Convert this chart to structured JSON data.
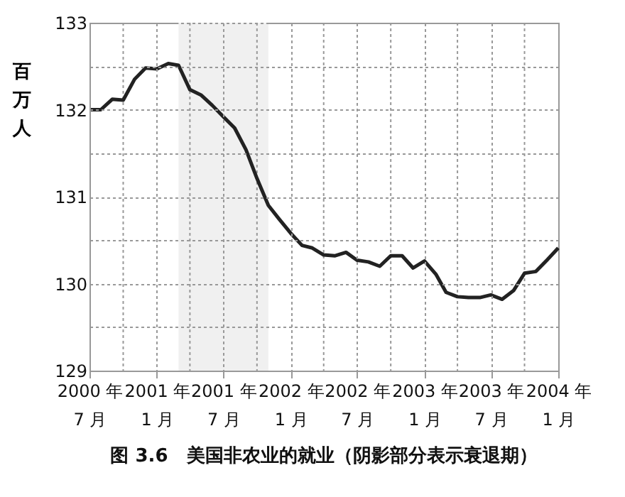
{
  "chart_data": {
    "type": "line",
    "title": "图 3.6　美国非农业的就业（阴影部分表示衰退期）",
    "ylabel": "百万人",
    "x": [
      "2000-07",
      "2000-08",
      "2000-09",
      "2000-10",
      "2000-11",
      "2000-12",
      "2001-01",
      "2001-02",
      "2001-03",
      "2001-04",
      "2001-05",
      "2001-06",
      "2001-07",
      "2001-08",
      "2001-09",
      "2001-10",
      "2001-11",
      "2001-12",
      "2002-01",
      "2002-02",
      "2002-03",
      "2002-04",
      "2002-05",
      "2002-06",
      "2002-07",
      "2002-08",
      "2002-09",
      "2002-10",
      "2002-11",
      "2002-12",
      "2003-01",
      "2003-02",
      "2003-03",
      "2003-04",
      "2003-05",
      "2003-06",
      "2003-07",
      "2003-08",
      "2003-09",
      "2003-10",
      "2003-11",
      "2003-12",
      "2004-01"
    ],
    "series": [
      {
        "color": "#222222",
        "values": [
          132.0,
          132.0,
          132.12,
          132.11,
          132.35,
          132.48,
          132.47,
          132.53,
          132.51,
          132.23,
          132.17,
          132.05,
          131.92,
          131.79,
          131.54,
          131.21,
          130.9,
          130.74,
          130.58,
          130.44,
          130.41,
          130.33,
          130.32,
          130.36,
          130.27,
          130.25,
          130.2,
          130.32,
          130.32,
          130.18,
          130.26,
          130.11,
          129.9,
          129.85,
          129.84,
          129.84,
          129.87,
          129.82,
          129.92,
          130.12,
          130.14,
          130.27,
          130.41
        ]
      }
    ],
    "xlim": [
      "2000-07",
      "2004-01"
    ],
    "xticks": [
      {
        "value": "2000-07",
        "label": "2000 年\n7 月"
      },
      {
        "value": "2000-10",
        "label": null
      },
      {
        "value": "2001-01",
        "label": "2001 年\n1 月"
      },
      {
        "value": "2001-04",
        "label": null
      },
      {
        "value": "2001-07",
        "label": "2001 年\n7 月"
      },
      {
        "value": "2001-10",
        "label": null
      },
      {
        "value": "2002-01",
        "label": "2002 年\n1 月"
      },
      {
        "value": "2002-04",
        "label": null
      },
      {
        "value": "2002-07",
        "label": "2002 年\n7 月"
      },
      {
        "value": "2002-10",
        "label": null
      },
      {
        "value": "2003-01",
        "label": "2003 年\n1 月"
      },
      {
        "value": "2003-04",
        "label": null
      },
      {
        "value": "2003-07",
        "label": "2003 年\n7 月"
      },
      {
        "value": "2003-10",
        "label": null
      },
      {
        "value": "2004-01",
        "label": "2004 年\n1 月"
      }
    ],
    "ylim": [
      129,
      133
    ],
    "yticks": [
      129,
      {
        "value": 129.5,
        "label": null
      },
      130,
      {
        "value": 130.5,
        "label": null
      },
      131,
      {
        "value": 131.5,
        "label": null
      },
      132,
      {
        "value": 132.5,
        "label": null
      },
      133
    ],
    "bands": [
      {
        "axis": "x",
        "from": "2001-03",
        "to": "2001-11",
        "color": "#f0f0f0"
      }
    ],
    "grid": true,
    "line_style": "solid",
    "marker": "none"
  }
}
